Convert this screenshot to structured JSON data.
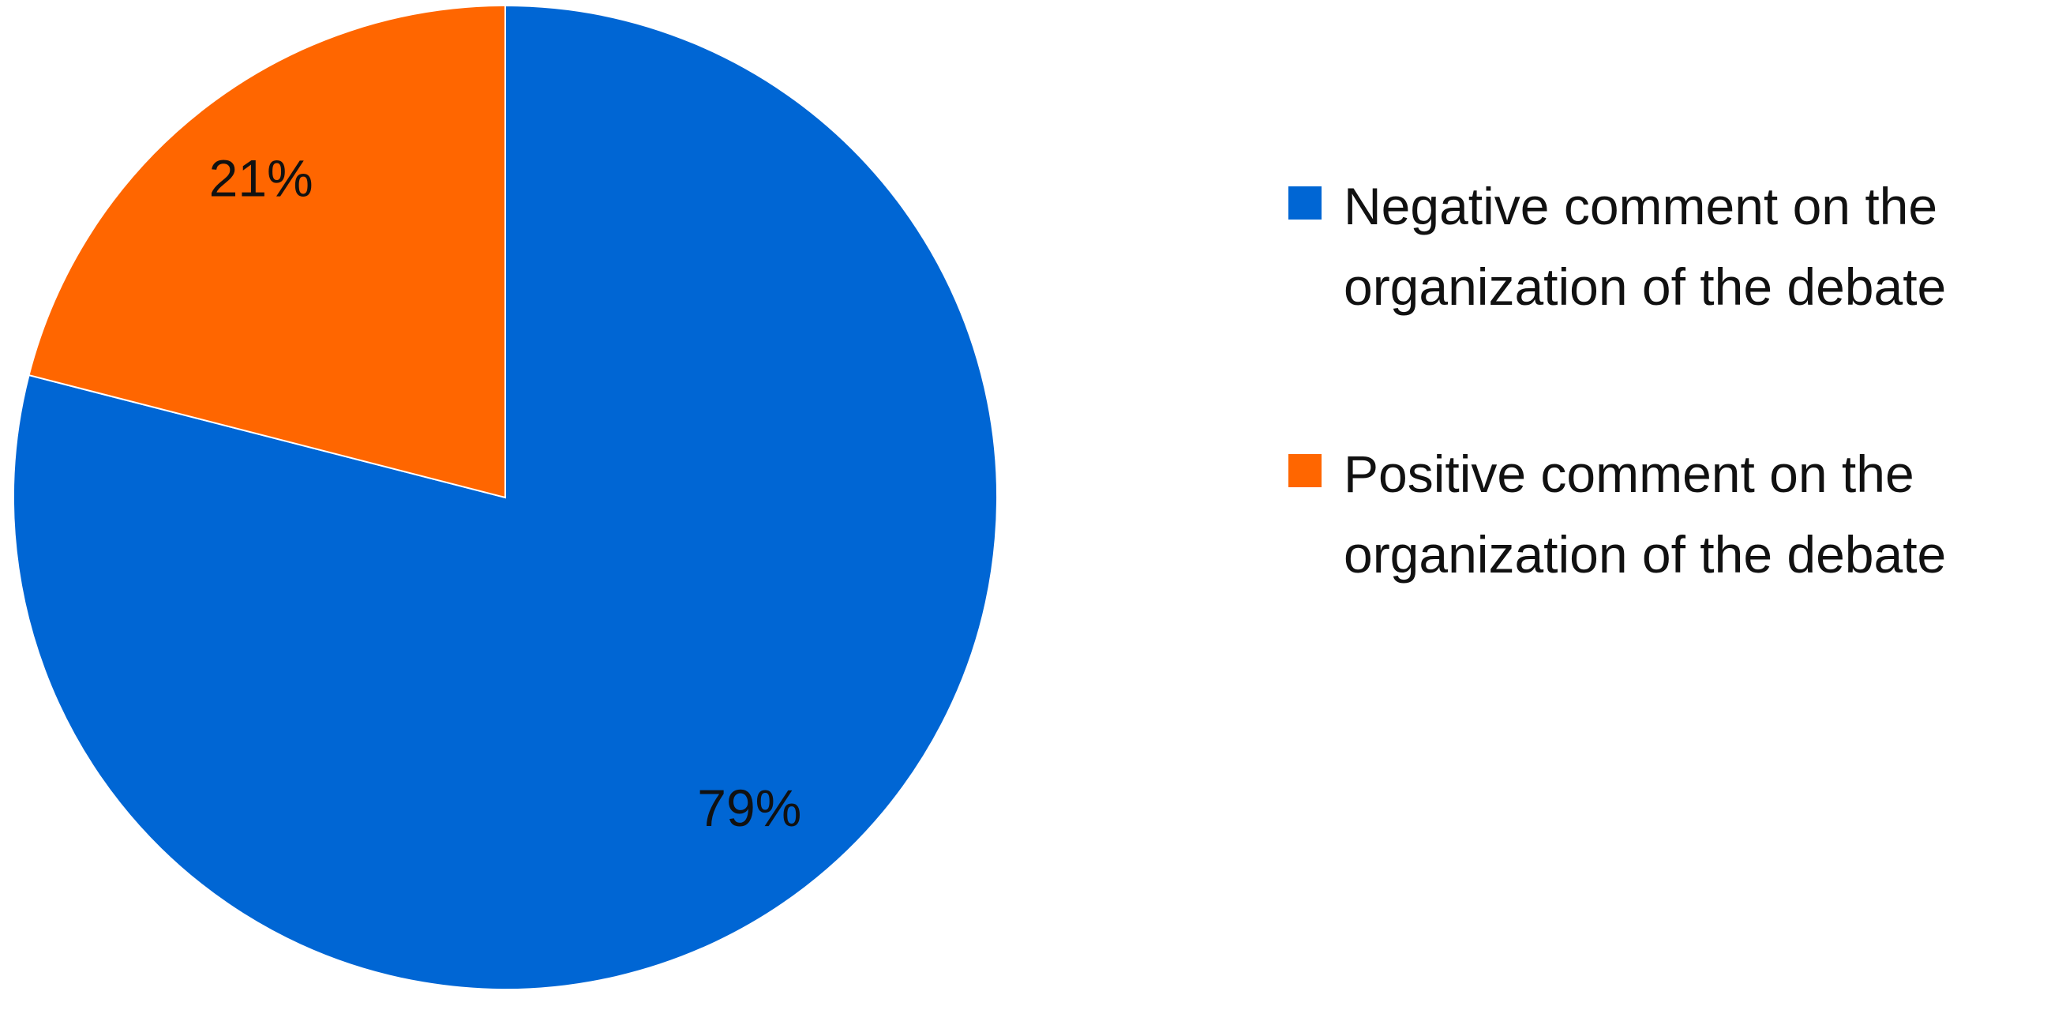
{
  "chart_data": {
    "type": "pie",
    "categories": [
      "Negative comment on the organization of the debate",
      "Positive comment on the organization of the debate"
    ],
    "values": [
      79,
      21
    ],
    "value_labels": [
      "79%",
      "21%"
    ],
    "colors": [
      "#0066d4",
      "#ff6600"
    ]
  }
}
